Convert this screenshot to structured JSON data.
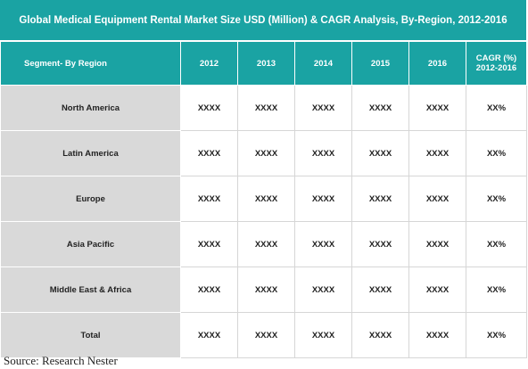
{
  "chart_data": {
    "type": "table",
    "title": "Global Medical Equipment Rental Market Size USD (Million) & CAGR Analysis, By-Region, 2012-2016",
    "columns": [
      "Segment- By Region",
      "2012",
      "2013",
      "2014",
      "2015",
      "2016",
      "CAGR (%)\n2012-2016"
    ],
    "column_header": {
      "segment": "Segment- By Region",
      "years": [
        "2012",
        "2013",
        "2014",
        "2015",
        "2016"
      ],
      "cagr_line1": "CAGR (%)",
      "cagr_line2": "2012-2016"
    },
    "rows": [
      {
        "region": "North America",
        "values": [
          "XXXX",
          "XXXX",
          "XXXX",
          "XXXX",
          "XXXX"
        ],
        "cagr": "XX%"
      },
      {
        "region": "Latin America",
        "values": [
          "XXXX",
          "XXXX",
          "XXXX",
          "XXXX",
          "XXXX"
        ],
        "cagr": "XX%"
      },
      {
        "region": "Europe",
        "values": [
          "XXXX",
          "XXXX",
          "XXXX",
          "XXXX",
          "XXXX"
        ],
        "cagr": "XX%"
      },
      {
        "region": "Asia Pacific",
        "values": [
          "XXXX",
          "XXXX",
          "XXXX",
          "XXXX",
          "XXXX"
        ],
        "cagr": "XX%"
      },
      {
        "region": "Middle East & Africa",
        "values": [
          "XXXX",
          "XXXX",
          "XXXX",
          "XXXX",
          "XXXX"
        ],
        "cagr": "XX%"
      },
      {
        "region": "Total",
        "values": [
          "XXXX",
          "XXXX",
          "XXXX",
          "XXXX",
          "XXXX"
        ],
        "cagr": "XX%"
      }
    ]
  },
  "source": "Source: Research Nester",
  "colors": {
    "header_bg": "#1aa3a3",
    "header_text": "#ffffff",
    "region_cell_bg": "#d9d9d9"
  }
}
